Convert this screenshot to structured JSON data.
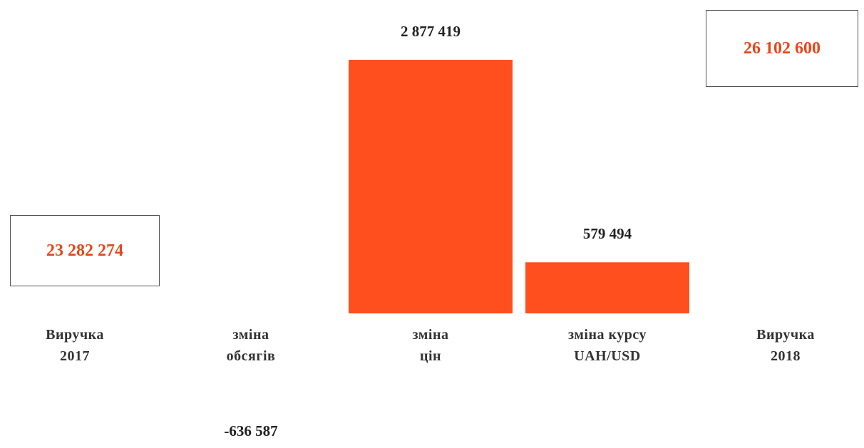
{
  "chart_data": {
    "type": "bar",
    "subtype": "waterfall",
    "colors": {
      "bar": "#ff4f1f",
      "total_text": "#e8461c"
    },
    "items": [
      {
        "label_lines": [
          "Виручка",
          "2017"
        ],
        "kind": "total",
        "value": 23282274,
        "display": "23 282 274"
      },
      {
        "label_lines": [
          "зміна",
          "обсягів"
        ],
        "kind": "delta",
        "value": -636587,
        "display": "-636 587"
      },
      {
        "label_lines": [
          "зміна",
          "цін"
        ],
        "kind": "delta",
        "value": 2877419,
        "display": "2 877 419"
      },
      {
        "label_lines": [
          "зміна курсу",
          "UAH/USD"
        ],
        "kind": "delta",
        "value": 579494,
        "display": "579 494"
      },
      {
        "label_lines": [
          "Виручка",
          "2018"
        ],
        "kind": "total",
        "value": 26102600,
        "display": "26 102 600"
      }
    ]
  }
}
